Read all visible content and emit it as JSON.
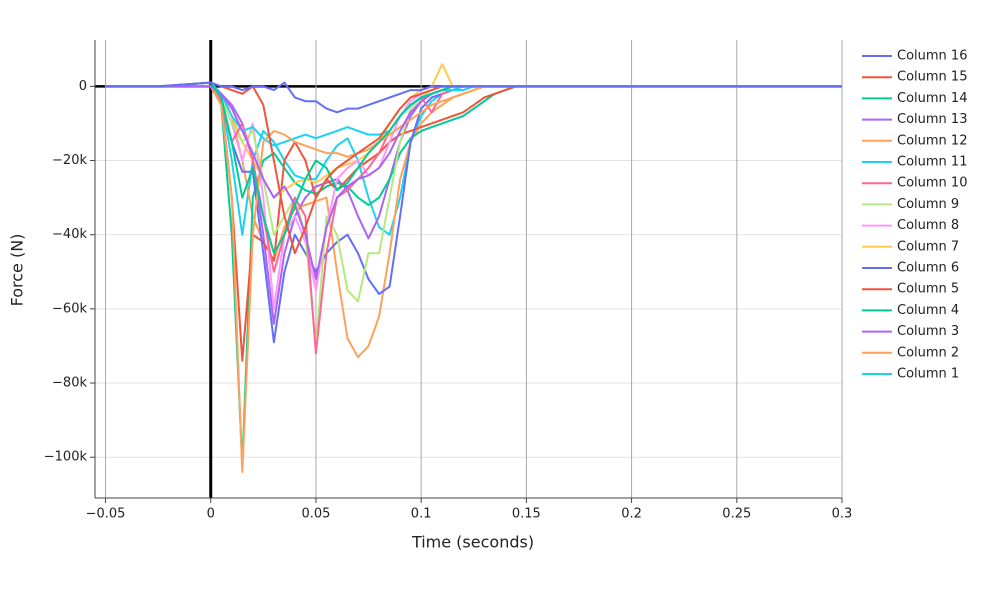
{
  "chart_data": {
    "type": "line",
    "x_label": "Time (seconds)",
    "y_label": "Force (N)",
    "xlim": [
      -0.055,
      0.3
    ],
    "ylim": [
      -111000,
      12500
    ],
    "xticks": [
      {
        "value": -0.05,
        "label": "−0.05"
      },
      0,
      0.05,
      0.1,
      0.15,
      0.2,
      0.25,
      0.3
    ],
    "yticks": [
      {
        "value": -100000,
        "label": "−100k"
      },
      {
        "value": -80000,
        "label": "−80k"
      },
      {
        "value": -60000,
        "label": "−60k"
      },
      {
        "value": -40000,
        "label": "−40k"
      },
      {
        "value": -20000,
        "label": "−20k"
      },
      0
    ],
    "grid": true,
    "legend": "right",
    "x": [
      -0.05,
      -0.025,
      0,
      0.005,
      0.01,
      0.015,
      0.02,
      0.025,
      0.03,
      0.035,
      0.04,
      0.045,
      0.05,
      0.055,
      0.06,
      0.065,
      0.07,
      0.075,
      0.08,
      0.085,
      0.09,
      0.095,
      0.1,
      0.105,
      0.11,
      0.115,
      0.12,
      0.125,
      0.13,
      0.135,
      0.14,
      0.145,
      0.15,
      0.175,
      0.2,
      0.25,
      0.3
    ],
    "series": [
      {
        "name": "Column 1",
        "color": "#19d3f3",
        "values": [
          0,
          0,
          0,
          -3000,
          -20000,
          -40000,
          -20000,
          -12000,
          -15000,
          -20000,
          -24000,
          -25000,
          -25000,
          -20000,
          -16000,
          -14000,
          -20000,
          -30000,
          -38000,
          -40000,
          -30000,
          -15000,
          -8000,
          -4000,
          -2000,
          -1000,
          -1000,
          0,
          0,
          0,
          0,
          0,
          0,
          0,
          0,
          0,
          0
        ]
      },
      {
        "name": "Column 2",
        "color": "#FFA15A",
        "values": [
          0,
          0,
          0,
          -2000,
          -8000,
          -20000,
          -35000,
          -42000,
          -47000,
          -38000,
          -33000,
          -32000,
          -31000,
          -30000,
          -50000,
          -68000,
          -73000,
          -70000,
          -62000,
          -45000,
          -25000,
          -15000,
          -10000,
          -7000,
          -5000,
          -3000,
          -2000,
          -1000,
          0,
          0,
          0,
          0,
          0,
          0,
          0,
          0,
          0
        ]
      },
      {
        "name": "Column 3",
        "color": "#ab63fa",
        "values": [
          0,
          0,
          0,
          -2000,
          -5000,
          -10000,
          -20000,
          -40000,
          -64000,
          -45000,
          -35000,
          -30000,
          -27000,
          -26000,
          -25000,
          -28000,
          -35000,
          -41000,
          -35000,
          -25000,
          -15000,
          -8000,
          -4000,
          -2000,
          -1000,
          0,
          0,
          0,
          0,
          0,
          0,
          0,
          0,
          0,
          0,
          0,
          0
        ]
      },
      {
        "name": "Column 4",
        "color": "#00cc96",
        "values": [
          0,
          0,
          0,
          -5000,
          -40000,
          -102000,
          -30000,
          -20000,
          -18000,
          -22000,
          -26000,
          -28000,
          -29000,
          -27000,
          -26000,
          -27000,
          -30000,
          -32000,
          -30000,
          -25000,
          -18000,
          -14000,
          -12000,
          -11000,
          -10000,
          -9000,
          -8000,
          -6000,
          -4000,
          -2000,
          -1000,
          0,
          0,
          0,
          0,
          0,
          0
        ]
      },
      {
        "name": "Column 5",
        "color": "#EF553B",
        "values": [
          0,
          0,
          0,
          -4000,
          -30000,
          -74000,
          -40000,
          -42000,
          -47000,
          -20000,
          -15000,
          -20000,
          -30000,
          -25000,
          -28000,
          -25000,
          -22000,
          -20000,
          -18000,
          -15000,
          -13000,
          -12000,
          -11000,
          -10000,
          -9000,
          -8000,
          -7000,
          -5000,
          -3000,
          -2000,
          -1000,
          0,
          0,
          0,
          0,
          0,
          0
        ]
      },
      {
        "name": "Column 6",
        "color": "#636efa",
        "values": [
          0,
          0,
          0,
          -3000,
          -15000,
          -23000,
          -23000,
          -45000,
          -69000,
          -50000,
          -40000,
          -45000,
          -50000,
          -45000,
          -42000,
          -40000,
          -45000,
          -52000,
          -56000,
          -54000,
          -35000,
          -15000,
          -6000,
          -3000,
          -2000,
          -1000,
          0,
          0,
          0,
          0,
          0,
          0,
          0,
          0,
          0,
          0,
          0
        ]
      },
      {
        "name": "Column 7",
        "color": "#FECB52",
        "values": [
          0,
          0,
          0,
          -2000,
          -8000,
          -15000,
          -20000,
          -25000,
          -30000,
          -28000,
          -26000,
          -25000,
          -26000,
          -24000,
          -22000,
          -21000,
          -20000,
          -18000,
          -15000,
          -10000,
          -6000,
          -3000,
          -1000,
          0,
          6000,
          0,
          0,
          0,
          0,
          0,
          0,
          0,
          0,
          0,
          0,
          0,
          0
        ]
      },
      {
        "name": "Column 8",
        "color": "#FF97FF",
        "values": [
          0,
          0,
          0,
          -3000,
          -10000,
          -20000,
          -10000,
          -30000,
          -60000,
          -40000,
          -35000,
          -42000,
          -55000,
          -38000,
          -25000,
          -22000,
          -20000,
          -24000,
          -22000,
          -15000,
          -8000,
          -4000,
          -2000,
          -1000,
          0,
          0,
          0,
          0,
          0,
          0,
          0,
          0,
          0,
          0,
          0,
          0,
          0
        ]
      },
      {
        "name": "Column 9",
        "color": "#B6E880",
        "values": [
          0,
          0,
          0,
          -3000,
          -10000,
          -15000,
          -12000,
          -25000,
          -40000,
          -35000,
          -30000,
          -40000,
          -70000,
          -35000,
          -40000,
          -55000,
          -58000,
          -45000,
          -45000,
          -30000,
          -15000,
          -6000,
          -3000,
          -1000,
          0,
          0,
          0,
          0,
          0,
          0,
          0,
          0,
          0,
          0,
          0,
          0,
          0
        ]
      },
      {
        "name": "Column 10",
        "color": "#FF6692",
        "values": [
          0,
          0,
          0,
          -4000,
          -15000,
          -10000,
          -20000,
          -35000,
          -50000,
          -40000,
          -30000,
          -35000,
          -72000,
          -45000,
          -30000,
          -28000,
          -25000,
          -22000,
          -18000,
          -12000,
          -8000,
          -5000,
          -3000,
          -7000,
          -2000,
          -1000,
          0,
          0,
          0,
          0,
          0,
          0,
          0,
          0,
          0,
          0,
          0
        ]
      },
      {
        "name": "Column 11",
        "color": "#19d3f3",
        "values": [
          0,
          0,
          1000,
          -2000,
          -8000,
          -12000,
          -11000,
          -14000,
          -16000,
          -15000,
          -14000,
          -13000,
          -14000,
          -13000,
          -12000,
          -11000,
          -12000,
          -13000,
          -13000,
          -12000,
          -8000,
          -5000,
          -3000,
          -2000,
          -1000,
          -1000,
          0,
          0,
          0,
          0,
          0,
          0,
          0,
          0,
          0,
          0,
          0
        ]
      },
      {
        "name": "Column 12",
        "color": "#FFA15A",
        "values": [
          0,
          0,
          0,
          -5000,
          -30000,
          -104000,
          -40000,
          -15000,
          -12000,
          -13000,
          -15000,
          -16000,
          -17000,
          -18000,
          -18000,
          -19000,
          -18000,
          -17000,
          -15000,
          -13000,
          -11000,
          -9000,
          -7000,
          -5000,
          -4000,
          -3000,
          -2000,
          -1000,
          0,
          0,
          0,
          0,
          0,
          0,
          0,
          0,
          0
        ]
      },
      {
        "name": "Column 13",
        "color": "#ab63fa",
        "values": [
          0,
          0,
          0,
          -2000,
          -6000,
          -12000,
          -18000,
          -25000,
          -30000,
          -27000,
          -32000,
          -40000,
          -52000,
          -38000,
          -30000,
          -27000,
          -25000,
          -24000,
          -22000,
          -18000,
          -12000,
          -7000,
          -4000,
          -2000,
          -1000,
          0,
          0,
          0,
          0,
          0,
          0,
          0,
          0,
          0,
          0,
          0,
          0
        ]
      },
      {
        "name": "Column 14",
        "color": "#00cc96",
        "values": [
          0,
          0,
          1000,
          -3000,
          -15000,
          -30000,
          -22000,
          -35000,
          -45000,
          -40000,
          -32000,
          -25000,
          -20000,
          -22000,
          -28000,
          -26000,
          -22000,
          -18000,
          -15000,
          -12000,
          -8000,
          -5000,
          -3000,
          -2000,
          -1000,
          0,
          0,
          0,
          0,
          0,
          0,
          0,
          0,
          0,
          0,
          0,
          0
        ]
      },
      {
        "name": "Column 15",
        "color": "#EF553B",
        "values": [
          0,
          0,
          1000,
          0,
          -1000,
          -2000,
          0,
          -5000,
          -20000,
          -35000,
          -45000,
          -38000,
          -30000,
          -25000,
          -22000,
          -20000,
          -18000,
          -16000,
          -14000,
          -10000,
          -6000,
          -3000,
          -2000,
          -1000,
          0,
          0,
          0,
          0,
          0,
          0,
          0,
          0,
          0,
          0,
          0,
          0,
          0
        ]
      },
      {
        "name": "Column 16",
        "color": "#636efa",
        "values": [
          0,
          0,
          1000,
          0,
          0,
          -1000,
          0,
          0,
          -1000,
          1000,
          -3000,
          -4000,
          -4000,
          -6000,
          -7000,
          -6000,
          -6000,
          -5000,
          -4000,
          -3000,
          -2000,
          -1000,
          -1000,
          0,
          0,
          0,
          0,
          0,
          0,
          0,
          0,
          0,
          0,
          0,
          0,
          0,
          0
        ]
      }
    ]
  }
}
